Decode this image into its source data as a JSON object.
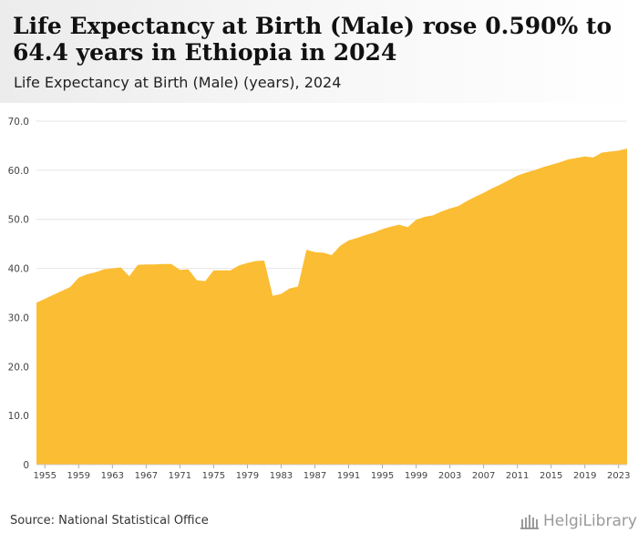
{
  "header": {
    "title": "Life Expectancy at Birth (Male) rose 0.590% to 64.4 years in Ethiopia in 2024",
    "subtitle": "Life Expectancy at Birth (Male) (years), 2024"
  },
  "footer": {
    "source": "Source: National Statistical Office",
    "logo_text": "HelgiLibrary"
  },
  "colors": {
    "area": "#fbbd33",
    "grid": "#e6e6e6",
    "axis_text": "#444444"
  },
  "chart_data": {
    "type": "area",
    "title": "Life Expectancy at Birth (Male) rose 0.590% to 64.4 years in Ethiopia in 2024",
    "subtitle": "Life Expectancy at Birth (Male) (years), 2024",
    "xlabel": "",
    "ylabel": "",
    "ylim": [
      0,
      70
    ],
    "yticks": [
      "0",
      "10.0",
      "20.0",
      "30.0",
      "40.0",
      "50.0",
      "60.0",
      "70.0"
    ],
    "xticks": [
      "1955",
      "1959",
      "1963",
      "1967",
      "1971",
      "1975",
      "1979",
      "1983",
      "1987",
      "1991",
      "1995",
      "1999",
      "2003",
      "2007",
      "2011",
      "2015",
      "2019",
      "2023"
    ],
    "grid": true,
    "legend": "none",
    "x": [
      1954,
      1955,
      1956,
      1957,
      1958,
      1959,
      1960,
      1961,
      1962,
      1963,
      1964,
      1965,
      1966,
      1967,
      1968,
      1969,
      1970,
      1971,
      1972,
      1973,
      1974,
      1975,
      1976,
      1977,
      1978,
      1979,
      1980,
      1981,
      1982,
      1983,
      1984,
      1985,
      1986,
      1987,
      1988,
      1989,
      1990,
      1991,
      1992,
      1993,
      1994,
      1995,
      1996,
      1997,
      1998,
      1999,
      2000,
      2001,
      2002,
      2003,
      2004,
      2005,
      2006,
      2007,
      2008,
      2009,
      2010,
      2011,
      2012,
      2013,
      2014,
      2015,
      2016,
      2017,
      2018,
      2019,
      2020,
      2021,
      2022,
      2023,
      2024
    ],
    "values": [
      33.0,
      33.8,
      34.6,
      35.4,
      36.2,
      38.1,
      38.8,
      39.2,
      39.8,
      40.0,
      40.2,
      38.4,
      40.7,
      40.8,
      40.8,
      40.9,
      40.9,
      39.7,
      39.8,
      37.6,
      37.4,
      39.6,
      39.6,
      39.6,
      40.6,
      41.1,
      41.5,
      41.6,
      34.4,
      34.8,
      35.9,
      36.3,
      43.8,
      43.3,
      43.2,
      42.7,
      44.6,
      45.7,
      46.2,
      46.8,
      47.3,
      48.0,
      48.5,
      48.9,
      48.4,
      49.9,
      50.5,
      50.8,
      51.6,
      52.2,
      52.7,
      53.7,
      54.6,
      55.4,
      56.3,
      57.1,
      58.0,
      58.9,
      59.5,
      60.0,
      60.6,
      61.1,
      61.6,
      62.2,
      62.5,
      62.8,
      62.6,
      63.6,
      63.8,
      64.0,
      64.4
    ]
  }
}
